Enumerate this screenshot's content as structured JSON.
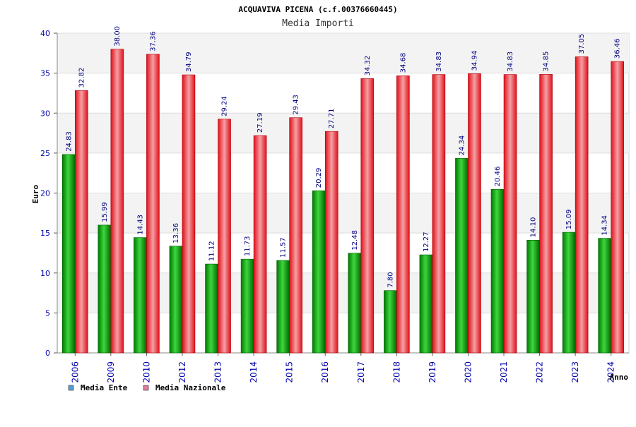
{
  "chart_data": {
    "type": "bar",
    "title": "ACQUAVIVA PICENA (c.f.00376660445)",
    "subtitle": "Media Importi",
    "xlabel": "Anno",
    "ylabel": "Euro",
    "ylim": [
      0,
      40
    ],
    "yticks": [
      "0",
      "5",
      "10",
      "15",
      "20",
      "25",
      "30",
      "35",
      "40"
    ],
    "grid": true,
    "legend_position": "bottom-left",
    "categories": [
      "2006",
      "2009",
      "2010",
      "2012",
      "2013",
      "2014",
      "2015",
      "2016",
      "2017",
      "2018",
      "2019",
      "2020",
      "2021",
      "2022",
      "2023",
      "2024"
    ],
    "series": [
      {
        "name": "Media Ente",
        "color": "#00a000",
        "values": [
          24.83,
          15.99,
          14.43,
          13.36,
          11.12,
          11.73,
          11.57,
          20.29,
          12.48,
          7.8,
          12.27,
          24.34,
          20.46,
          14.1,
          15.09,
          14.34
        ],
        "labels": [
          "24.83",
          "15.99",
          "14.43",
          "13.36",
          "11.12",
          "11.73",
          "11.57",
          "20.29",
          "12.48",
          "7.80",
          "12.27",
          "24.34",
          "20.46",
          "14.10",
          "15.09",
          "14.34"
        ]
      },
      {
        "name": "Media Nazionale",
        "color": "#e8141e",
        "values": [
          32.82,
          38.0,
          37.36,
          34.79,
          29.24,
          27.19,
          29.43,
          27.71,
          34.32,
          34.68,
          34.83,
          34.94,
          34.83,
          34.85,
          37.05,
          36.46
        ],
        "labels": [
          "32.82",
          "38.00",
          "37.36",
          "34.79",
          "29.24",
          "27.19",
          "29.43",
          "27.71",
          "34.32",
          "34.68",
          "34.83",
          "34.94",
          "34.83",
          "34.85",
          "37.05",
          "36.46"
        ]
      }
    ],
    "legend": [
      {
        "label": "Media Ente",
        "swatch_color": "#5b9bd5"
      },
      {
        "label": "Media Nazionale",
        "swatch_color": "#e07aa0"
      }
    ]
  }
}
